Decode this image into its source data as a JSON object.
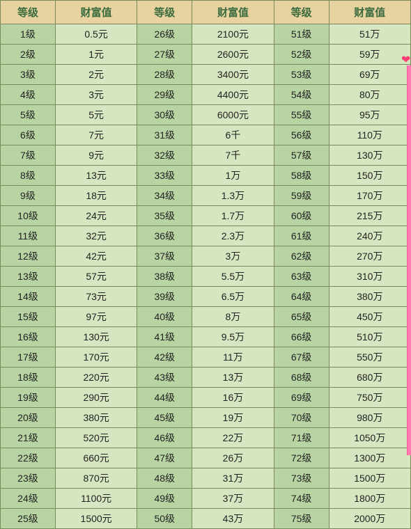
{
  "table": {
    "header_label_level": "等级",
    "header_label_wealth": "财富值",
    "header_bg": "#e8d3a0",
    "header_color": "#3a6b3f",
    "level_cell_bg": "#b8d4a3",
    "value_cell_bg": "#d6e6c0",
    "border_color": "#7a8a5a",
    "page_bg": "#f5e4bd",
    "ribbon_color": "#ff7bb0",
    "heart_color": "#ff3b76",
    "rows": [
      {
        "l1": "1级",
        "v1": "0.5元",
        "l2": "26级",
        "v2": "2100元",
        "l3": "51级",
        "v3": "51万"
      },
      {
        "l1": "2级",
        "v1": "1元",
        "l2": "27级",
        "v2": "2600元",
        "l3": "52级",
        "v3": "59万"
      },
      {
        "l1": "3级",
        "v1": "2元",
        "l2": "28级",
        "v2": "3400元",
        "l3": "53级",
        "v3": "69万"
      },
      {
        "l1": "4级",
        "v1": "3元",
        "l2": "29级",
        "v2": "4400元",
        "l3": "54级",
        "v3": "80万"
      },
      {
        "l1": "5级",
        "v1": "5元",
        "l2": "30级",
        "v2": "6000元",
        "l3": "55级",
        "v3": "95万"
      },
      {
        "l1": "6级",
        "v1": "7元",
        "l2": "31级",
        "v2": "6千",
        "l3": "56级",
        "v3": "110万"
      },
      {
        "l1": "7级",
        "v1": "9元",
        "l2": "32级",
        "v2": "7千",
        "l3": "57级",
        "v3": "130万"
      },
      {
        "l1": "8级",
        "v1": "13元",
        "l2": "33级",
        "v2": "1万",
        "l3": "58级",
        "v3": "150万"
      },
      {
        "l1": "9级",
        "v1": "18元",
        "l2": "34级",
        "v2": "1.3万",
        "l3": "59级",
        "v3": "170万"
      },
      {
        "l1": "10级",
        "v1": "24元",
        "l2": "35级",
        "v2": "1.7万",
        "l3": "60级",
        "v3": "215万"
      },
      {
        "l1": "11级",
        "v1": "32元",
        "l2": "36级",
        "v2": "2.3万",
        "l3": "61级",
        "v3": "240万"
      },
      {
        "l1": "12级",
        "v1": "42元",
        "l2": "37级",
        "v2": "3万",
        "l3": "62级",
        "v3": "270万"
      },
      {
        "l1": "13级",
        "v1": "57元",
        "l2": "38级",
        "v2": "5.5万",
        "l3": "63级",
        "v3": "310万"
      },
      {
        "l1": "14级",
        "v1": "73元",
        "l2": "39级",
        "v2": "6.5万",
        "l3": "64级",
        "v3": "380万"
      },
      {
        "l1": "15级",
        "v1": "97元",
        "l2": "40级",
        "v2": "8万",
        "l3": "65级",
        "v3": "450万"
      },
      {
        "l1": "16级",
        "v1": "130元",
        "l2": "41级",
        "v2": "9.5万",
        "l3": "66级",
        "v3": "510万"
      },
      {
        "l1": "17级",
        "v1": "170元",
        "l2": "42级",
        "v2": "11万",
        "l3": "67级",
        "v3": "550万"
      },
      {
        "l1": "18级",
        "v1": "220元",
        "l2": "43级",
        "v2": "13万",
        "l3": "68级",
        "v3": "680万"
      },
      {
        "l1": "19级",
        "v1": "290元",
        "l2": "44级",
        "v2": "16万",
        "l3": "69级",
        "v3": "750万"
      },
      {
        "l1": "20级",
        "v1": "380元",
        "l2": "45级",
        "v2": "19万",
        "l3": "70级",
        "v3": "980万"
      },
      {
        "l1": "21级",
        "v1": "520元",
        "l2": "46级",
        "v2": "22万",
        "l3": "71级",
        "v3": "1050万"
      },
      {
        "l1": "22级",
        "v1": "660元",
        "l2": "47级",
        "v2": "26万",
        "l3": "72级",
        "v3": "1300万"
      },
      {
        "l1": "23级",
        "v1": "870元",
        "l2": "48级",
        "v2": "31万",
        "l3": "73级",
        "v3": "1500万"
      },
      {
        "l1": "24级",
        "v1": "1100元",
        "l2": "49级",
        "v2": "37万",
        "l3": "74级",
        "v3": "1800万"
      },
      {
        "l1": "25级",
        "v1": "1500元",
        "l2": "50级",
        "v2": "43万",
        "l3": "75级",
        "v3": "2000万"
      }
    ]
  }
}
